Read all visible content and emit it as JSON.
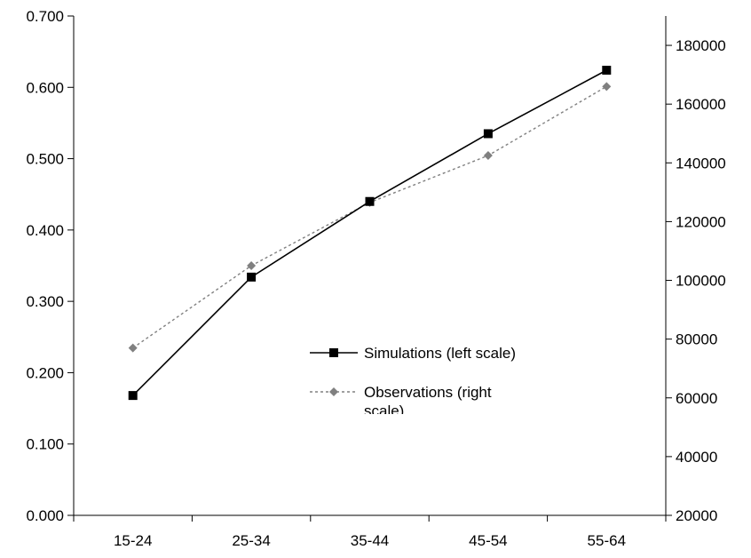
{
  "chart_data": {
    "type": "line",
    "title": "",
    "xlabel": "",
    "ylabel": "",
    "y2label": "",
    "categories": [
      "15-24",
      "25-34",
      "35-44",
      "45-54",
      "55-64"
    ],
    "ylim_left": [
      0,
      0.7
    ],
    "ylim_right": [
      20000,
      190000
    ],
    "left_ticks": [
      "0.000",
      "0.100",
      "0.200",
      "0.300",
      "0.400",
      "0.500",
      "0.600",
      "0.700"
    ],
    "right_ticks": [
      "20000",
      "40000",
      "60000",
      "80000",
      "100000",
      "120000",
      "140000",
      "160000",
      "180000"
    ],
    "grid": false,
    "legend_position": "center-right",
    "series": [
      {
        "name": "Simulations (left scale)",
        "axis": "left",
        "values": [
          0.168,
          0.334,
          0.44,
          0.535,
          0.624
        ],
        "color": "#000000",
        "line": "solid",
        "marker": "square"
      },
      {
        "name": "Observations (right scale)",
        "axis": "right",
        "values": [
          77000,
          105000,
          126500,
          142500,
          166000
        ],
        "color": "#808080",
        "line": "dotted",
        "marker": "diamond"
      }
    ]
  }
}
